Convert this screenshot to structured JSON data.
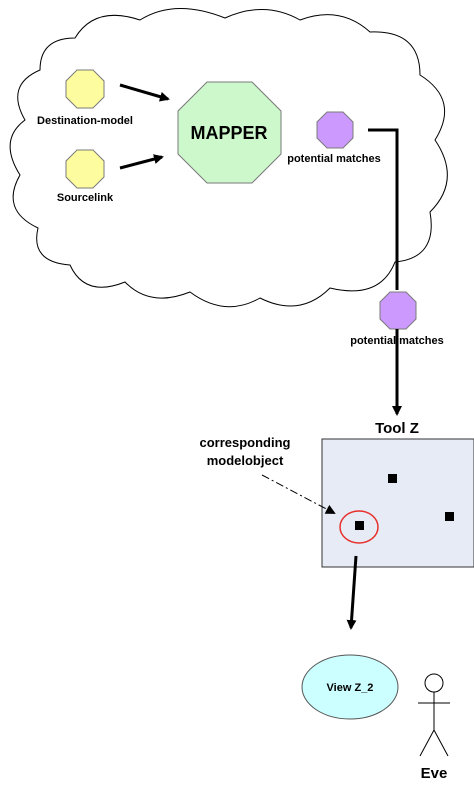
{
  "cloud": {
    "nodes": {
      "destination_model": "Destination-model",
      "sourcelink": "Sourcelink",
      "mapper": "MAPPER",
      "potential_matches": "potential matches"
    }
  },
  "potential_matches_outside": "potential matches",
  "tool": {
    "title": "Tool Z",
    "callout": [
      "corresponding",
      "modelobject"
    ]
  },
  "view": {
    "label": "View Z_2"
  },
  "actor": {
    "name": "Eve"
  },
  "colors": {
    "yellow_node": "#fdfd9f",
    "mapper_fill": "#ccf8cc",
    "purple_node": "#cc99ff",
    "tool_fill": "#e6ebf6",
    "view_fill": "#ccffff",
    "highlight_circle": "#e8302b"
  }
}
